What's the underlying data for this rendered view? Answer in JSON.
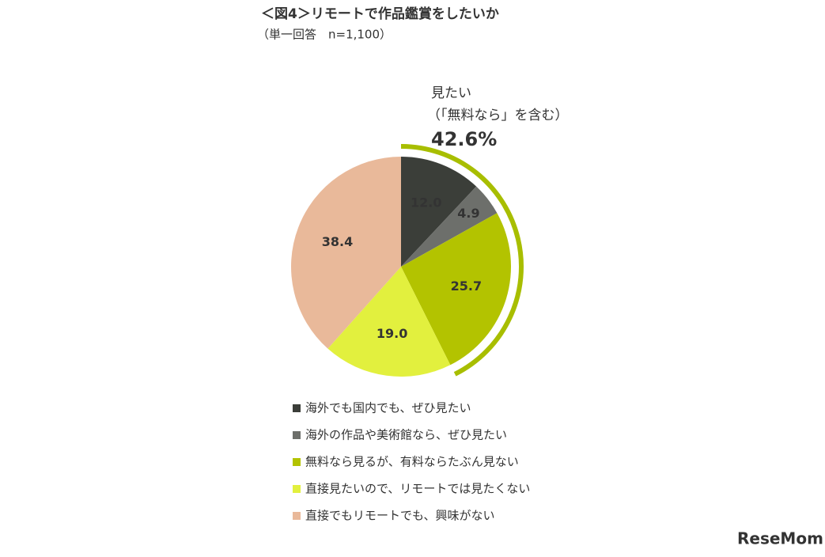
{
  "chart_data": {
    "type": "pie",
    "title": "＜図4＞リモートで作品鑑賞をしたいか",
    "subtitle": "（単一回答　n=1,100）",
    "categories": [
      "海外でも国内でも、ぜひ見たい",
      "海外の作品や美術館なら、ぜひ見たい",
      "無料なら見るが、有料ならたぶん見ない",
      "直接見たいので、リモートでは見たくない",
      "直接でもリモートでも、興味がない"
    ],
    "values": [
      12.0,
      4.9,
      25.7,
      19.0,
      38.4
    ],
    "value_labels": [
      "12.0",
      "4.9",
      "25.7",
      "19.0",
      "38.4"
    ],
    "colors": [
      "#3b3e39",
      "#6d6f6b",
      "#b3c300",
      "#e2f03e",
      "#e9b99a"
    ],
    "annotation": {
      "text": "見たい",
      "subtext": "（「無料なら」を含む）",
      "value": 42.6,
      "label": "42.6%",
      "color": "#a8be00"
    },
    "watermark": "ReseMom"
  }
}
